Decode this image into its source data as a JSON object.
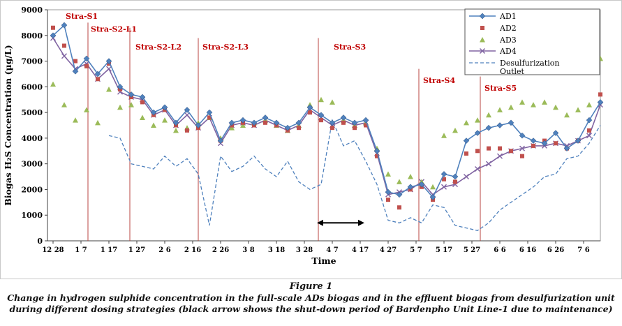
{
  "caption": {
    "figure_label": "Figure 1",
    "text": "Change in hydrogen sulphide concentration in the full-scale ADs biogas and in the effluent biogas from desulfurization unit during different dosing strategies (black arrow shows the shut-down period of Bardenpho Unit Line-1 due to maintenance)"
  },
  "chart_data": {
    "type": "line",
    "title": "",
    "xlabel": "Time",
    "ylabel": "Biogas H₂S Concentration (µg/L)",
    "ylim": [
      0,
      9000
    ],
    "ytick_step": 1000,
    "grid": false,
    "legend_position": "top-right",
    "x_range": [
      -0.2,
      19.6
    ],
    "x_tick_labels": [
      "12 28",
      "1 7",
      "1 17",
      "1 27",
      "2 6",
      "2 16",
      "2 26",
      "3 8",
      "3 18",
      "3 28",
      "4 7",
      "4 17",
      "4 27",
      "5 7",
      "5 17",
      "5 27",
      "6 6",
      "6 16",
      "6 26",
      "7 6"
    ],
    "x_common": [
      0,
      0.4,
      0.8,
      1.2,
      1.6,
      2,
      2.4,
      2.8,
      3.2,
      3.6,
      4,
      4.4,
      4.8,
      5.2,
      5.6,
      6,
      6.4,
      6.8,
      7.2,
      7.6,
      8,
      8.4,
      8.8,
      9.2,
      9.6,
      10,
      10.4,
      10.8,
      11.2,
      11.6,
      12,
      12.4,
      12.8,
      13.2,
      13.6,
      14,
      14.4,
      14.8,
      15.2,
      15.6,
      16,
      16.4,
      16.8,
      17.2,
      17.6,
      18,
      18.4,
      18.8,
      19.2,
      19.6
    ],
    "series": [
      {
        "name": "AD1",
        "legend_label": "AD1",
        "color": "#4F81BD",
        "marker": "diamond",
        "line": true,
        "dashed": false,
        "x": "common",
        "y": [
          8000,
          8400,
          6600,
          7100,
          6500,
          7000,
          6000,
          5700,
          5600,
          5000,
          5200,
          4600,
          5100,
          4500,
          5000,
          3900,
          4600,
          4700,
          4600,
          4800,
          4600,
          4400,
          4600,
          5200,
          4900,
          4600,
          4800,
          4600,
          4700,
          3500,
          1900,
          1800,
          2100,
          2200,
          1700,
          2600,
          2500,
          3900,
          4200,
          4400,
          4500,
          4600,
          4100,
          3900,
          3800,
          4200,
          3600,
          3900,
          4700,
          5400
        ]
      },
      {
        "name": "AD2",
        "legend_label": "AD2",
        "color": "#C0504D",
        "marker": "square",
        "line": false,
        "dashed": false,
        "x": "common",
        "y": [
          8300,
          7600,
          7000,
          6800,
          6300,
          6900,
          5900,
          5600,
          5400,
          4900,
          5100,
          4500,
          4300,
          4400,
          4800,
          3900,
          4500,
          4600,
          4500,
          4600,
          4500,
          4300,
          4400,
          5000,
          4700,
          4400,
          4600,
          4400,
          4500,
          3300,
          1600,
          1300,
          2000,
          2100,
          1600,
          2400,
          2300,
          3400,
          3500,
          3600,
          3600,
          3500,
          3300,
          3700,
          3900,
          3800,
          3600,
          3900,
          4300,
          5700
        ]
      },
      {
        "name": "AD3",
        "legend_label": "AD3",
        "color": "#9BBB59",
        "marker": "triangle",
        "line": false,
        "dashed": false,
        "x": "common",
        "y": [
          6100,
          5300,
          4700,
          5100,
          4600,
          5900,
          5200,
          5300,
          4800,
          4500,
          4700,
          4300,
          4400,
          4600,
          4800,
          4000,
          4400,
          4500,
          4600,
          4700,
          4500,
          4300,
          4500,
          5300,
          5500,
          5400,
          4700,
          4500,
          4600,
          3600,
          2600,
          2300,
          2500,
          2300,
          2100,
          4100,
          4300,
          4600,
          4700,
          4900,
          5100,
          5200,
          5400,
          5300,
          5400,
          5200,
          4900,
          5100,
          5300,
          7100
        ]
      },
      {
        "name": "AD4",
        "legend_label": "AD4",
        "color": "#8064A2",
        "marker": "x",
        "line": true,
        "dashed": false,
        "x": "common",
        "y": [
          7900,
          7200,
          6700,
          6900,
          6300,
          6700,
          5800,
          5600,
          5500,
          4900,
          5100,
          4500,
          4900,
          4400,
          4800,
          3800,
          4500,
          4600,
          4500,
          4700,
          4500,
          4300,
          4500,
          5100,
          4800,
          4500,
          4700,
          4500,
          4600,
          3400,
          1800,
          1900,
          2000,
          2300,
          1800,
          2100,
          2200,
          2500,
          2800,
          3000,
          3300,
          3500,
          3600,
          3700,
          3700,
          3800,
          3700,
          3900,
          4100,
          5300
        ]
      },
      {
        "name": "Desulfurization Outlet",
        "legend_label": "Desulfurization\nOutlet",
        "color": "#4F81BD",
        "marker": "none",
        "line": true,
        "dashed": true,
        "x": [
          2,
          2.4,
          2.8,
          3.2,
          3.6,
          4,
          4.4,
          4.8,
          5.2,
          5.6,
          6,
          6.4,
          6.8,
          7.2,
          7.6,
          8,
          8.4,
          8.8,
          9.2,
          9.6,
          10,
          10.4,
          10.8,
          11.2,
          11.6,
          12,
          12.4,
          12.8,
          13.2,
          13.6,
          14,
          14.4,
          14.8,
          15.2,
          15.6,
          16,
          16.4,
          16.8,
          17.2,
          17.6,
          18,
          18.4,
          18.8,
          19.2,
          19.6
        ],
        "y": [
          4100,
          4000,
          3000,
          2900,
          2800,
          3300,
          2900,
          3200,
          2600,
          600,
          3300,
          2700,
          2900,
          3300,
          2800,
          2500,
          3100,
          2300,
          2000,
          2200,
          4700,
          3700,
          3900,
          3100,
          2200,
          800,
          700,
          900,
          700,
          1400,
          1300,
          600,
          500,
          400,
          700,
          1200,
          1500,
          1800,
          2100,
          2500,
          2600,
          3200,
          3300,
          3800,
          4500
        ]
      }
    ],
    "strategy_lines": [
      {
        "x": 1.25,
        "y_top": 8500
      },
      {
        "x": 2.75,
        "y_top": 8300
      },
      {
        "x": 5.2,
        "y_top": 7900
      },
      {
        "x": 9.5,
        "y_top": 7900
      },
      {
        "x": 13.1,
        "y_top": 6700
      },
      {
        "x": 15.3,
        "y_top": 6400
      }
    ],
    "strategy_labels": [
      {
        "text": "Stra-S1",
        "x": 0.45,
        "y": 8650
      },
      {
        "text": "Stra-S2-L1",
        "x": 1.35,
        "y": 8150
      },
      {
        "text": "Stra-S2-L2",
        "x": 2.95,
        "y": 7450
      },
      {
        "text": "Stra-S2-L3",
        "x": 5.35,
        "y": 7450
      },
      {
        "text": "Stra-S3",
        "x": 10.05,
        "y": 7450
      },
      {
        "text": "Stra-S4",
        "x": 13.25,
        "y": 6150
      },
      {
        "text": "Stra-S5",
        "x": 15.45,
        "y": 5850
      }
    ],
    "arrow": {
      "x1": 9.45,
      "x2": 11.15,
      "y": 700
    },
    "colors": {
      "strategy_line": "#b94441",
      "strategy_label": "#c00000",
      "axis": "#404040",
      "plot_border": "#9a9a9a",
      "chart_border": "#c8c8c8",
      "arrow": "#000000"
    }
  }
}
